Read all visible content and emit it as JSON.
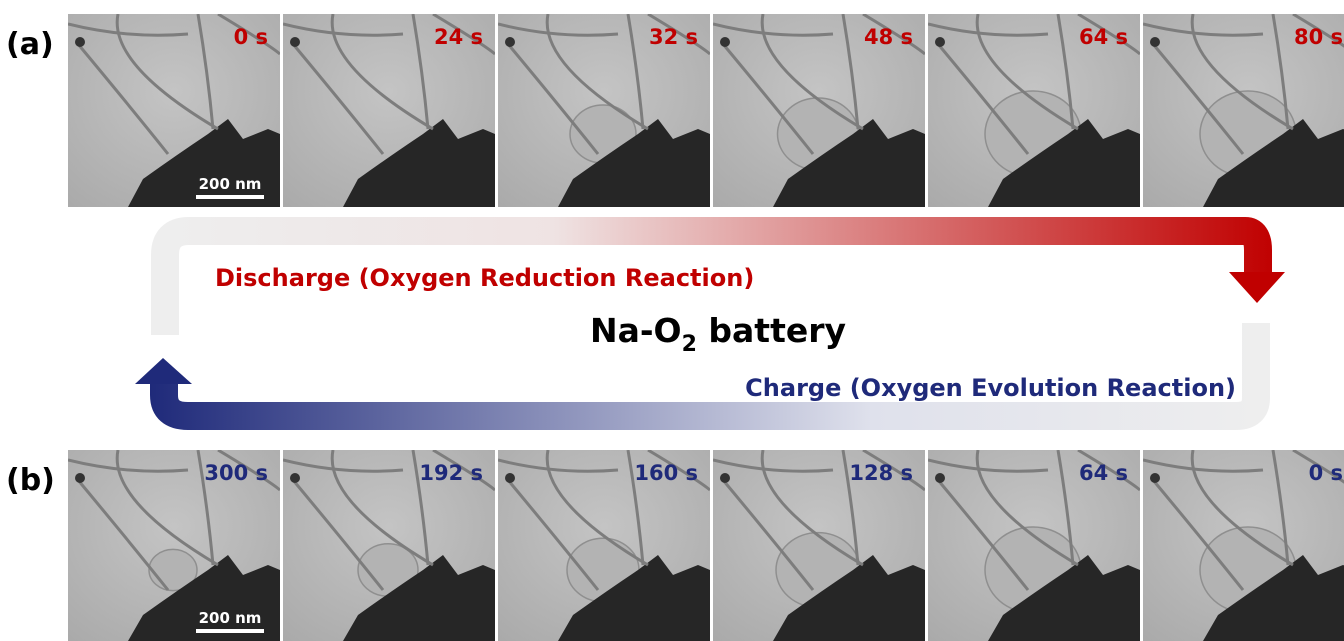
{
  "panel_a": {
    "label": "(a)",
    "times": [
      "0 s",
      "24 s",
      "32 s",
      "48 s",
      "64 s",
      "80 s"
    ],
    "scale_bar": "200 nm"
  },
  "center": {
    "discharge": "Discharge (Oxygen Reduction Reaction)",
    "title_main": "Na-O",
    "title_sub": "2",
    "title_end": " battery",
    "charge": "Charge (Oxygen Evolution Reaction)"
  },
  "panel_b": {
    "label": "(b)",
    "times": [
      "300 s",
      "192 s",
      "160 s",
      "128 s",
      "64 s",
      "0 s"
    ],
    "scale_bar": "200 nm"
  }
}
